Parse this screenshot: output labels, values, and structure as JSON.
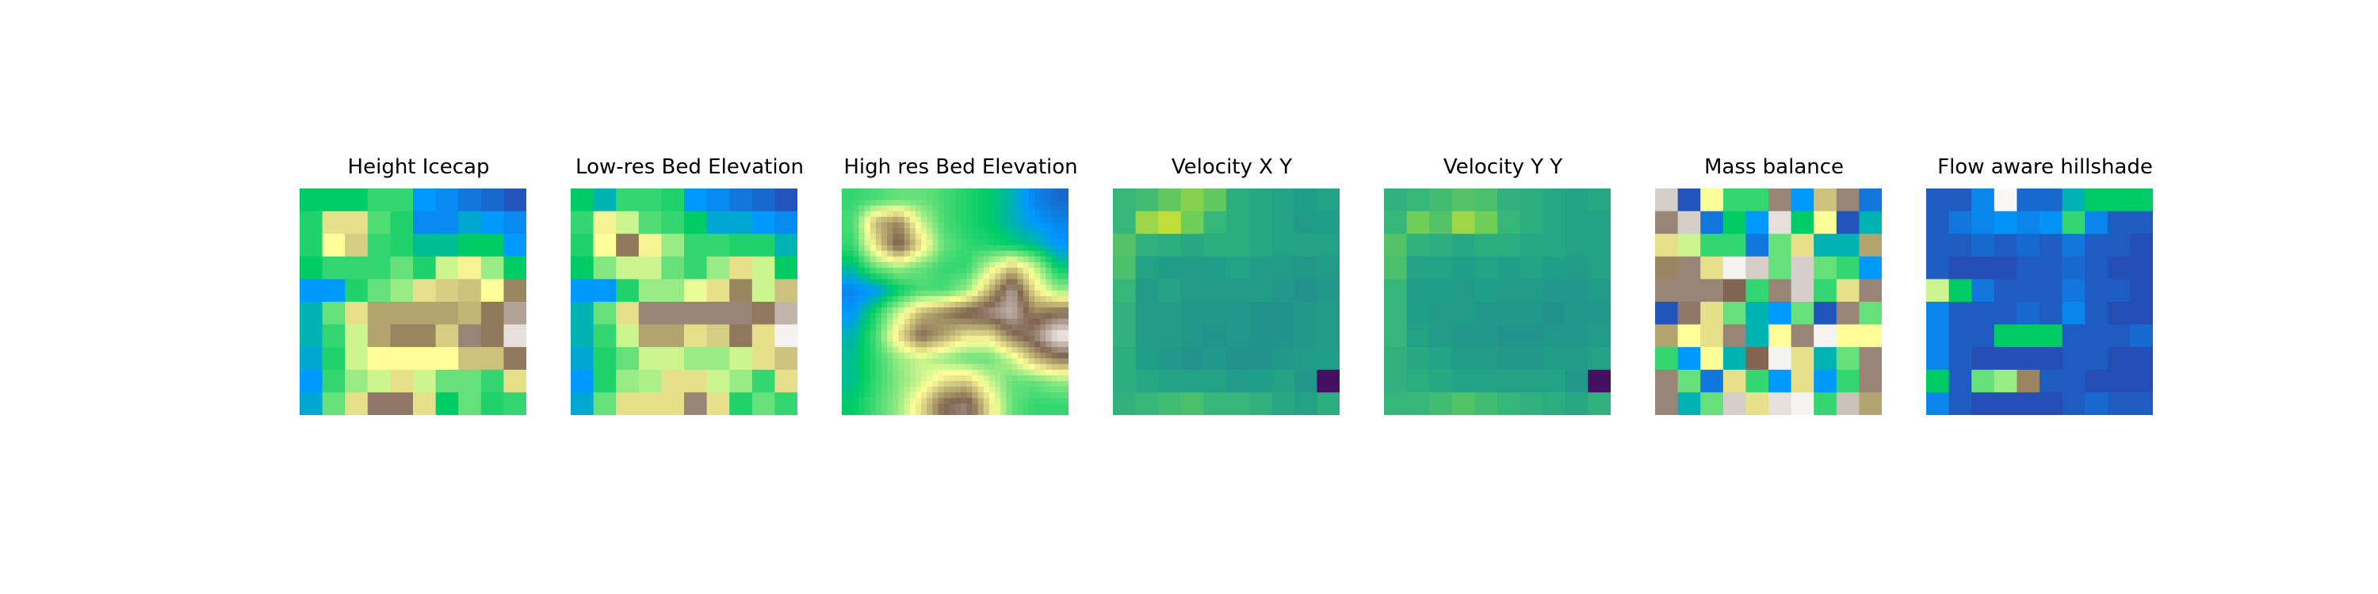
{
  "chart_data": [
    {
      "type": "heatmap",
      "title": "Height Icecap",
      "colormap": "terrain",
      "grid": false,
      "axes": "off",
      "z": [
        [
          0.25,
          0.25,
          0.25,
          0.3,
          0.3,
          0.15,
          0.13,
          0.1,
          0.08,
          0.05
        ],
        [
          0.28,
          0.55,
          0.55,
          0.33,
          0.28,
          0.13,
          0.13,
          0.18,
          0.15,
          0.13
        ],
        [
          0.28,
          0.5,
          0.58,
          0.3,
          0.28,
          0.22,
          0.22,
          0.25,
          0.25,
          0.15
        ],
        [
          0.25,
          0.3,
          0.3,
          0.3,
          0.35,
          0.28,
          0.45,
          0.52,
          0.4,
          0.25
        ],
        [
          0.15,
          0.15,
          0.28,
          0.35,
          0.4,
          0.55,
          0.58,
          0.6,
          0.5,
          0.7
        ],
        [
          0.2,
          0.35,
          0.55,
          0.65,
          0.65,
          0.65,
          0.65,
          0.62,
          0.72,
          0.85
        ],
        [
          0.2,
          0.3,
          0.45,
          0.65,
          0.7,
          0.7,
          0.58,
          0.8,
          0.72,
          0.95
        ],
        [
          0.18,
          0.28,
          0.45,
          0.5,
          0.5,
          0.5,
          0.5,
          0.6,
          0.6,
          0.72
        ],
        [
          0.15,
          0.3,
          0.4,
          0.45,
          0.55,
          0.45,
          0.35,
          0.35,
          0.3,
          0.55
        ],
        [
          0.18,
          0.35,
          0.55,
          0.78,
          0.78,
          0.55,
          0.25,
          0.35,
          0.28,
          0.3
        ]
      ]
    },
    {
      "type": "heatmap",
      "title": "Low-res Bed Elevation",
      "colormap": "terrain",
      "grid": false,
      "axes": "off",
      "z": [
        [
          0.25,
          0.2,
          0.3,
          0.3,
          0.28,
          0.15,
          0.13,
          0.1,
          0.08,
          0.05
        ],
        [
          0.3,
          0.52,
          0.45,
          0.33,
          0.3,
          0.25,
          0.18,
          0.18,
          0.15,
          0.13
        ],
        [
          0.28,
          0.5,
          0.72,
          0.52,
          0.4,
          0.3,
          0.3,
          0.28,
          0.28,
          0.2
        ],
        [
          0.25,
          0.38,
          0.45,
          0.45,
          0.35,
          0.3,
          0.4,
          0.55,
          0.45,
          0.25
        ],
        [
          0.15,
          0.15,
          0.28,
          0.4,
          0.4,
          0.48,
          0.55,
          0.7,
          0.45,
          0.6
        ],
        [
          0.2,
          0.35,
          0.55,
          0.8,
          0.8,
          0.8,
          0.8,
          0.8,
          0.72,
          0.88
        ],
        [
          0.2,
          0.3,
          0.45,
          0.65,
          0.65,
          0.55,
          0.58,
          0.72,
          0.55,
          0.98
        ],
        [
          0.18,
          0.28,
          0.35,
          0.45,
          0.45,
          0.4,
          0.4,
          0.45,
          0.55,
          0.6
        ],
        [
          0.15,
          0.28,
          0.4,
          0.42,
          0.55,
          0.55,
          0.45,
          0.4,
          0.3,
          0.55
        ],
        [
          0.18,
          0.35,
          0.55,
          0.55,
          0.55,
          0.8,
          0.55,
          0.28,
          0.35,
          0.3
        ]
      ]
    },
    {
      "type": "heatmap",
      "title": "High res Bed Elevation",
      "colormap": "terrain",
      "grid": false,
      "axes": "off",
      "smooth": true,
      "z": [
        [
          0.3,
          0.32,
          0.35,
          0.35,
          0.32,
          0.28,
          0.25,
          0.2,
          0.12,
          0.08
        ],
        [
          0.32,
          0.62,
          0.7,
          0.45,
          0.32,
          0.28,
          0.25,
          0.2,
          0.15,
          0.12
        ],
        [
          0.3,
          0.55,
          0.78,
          0.55,
          0.35,
          0.3,
          0.28,
          0.25,
          0.22,
          0.15
        ],
        [
          0.22,
          0.35,
          0.4,
          0.35,
          0.3,
          0.3,
          0.45,
          0.6,
          0.45,
          0.25
        ],
        [
          0.12,
          0.15,
          0.25,
          0.32,
          0.32,
          0.4,
          0.62,
          0.85,
          0.55,
          0.4
        ],
        [
          0.15,
          0.28,
          0.45,
          0.62,
          0.7,
          0.78,
          0.82,
          0.88,
          0.7,
          0.75
        ],
        [
          0.2,
          0.32,
          0.55,
          0.75,
          0.65,
          0.55,
          0.55,
          0.72,
          0.8,
          0.98
        ],
        [
          0.22,
          0.3,
          0.4,
          0.45,
          0.4,
          0.35,
          0.35,
          0.45,
          0.62,
          0.72
        ],
        [
          0.22,
          0.3,
          0.38,
          0.45,
          0.55,
          0.58,
          0.45,
          0.35,
          0.35,
          0.4
        ],
        [
          0.25,
          0.32,
          0.4,
          0.55,
          0.75,
          0.8,
          0.55,
          0.35,
          0.3,
          0.3
        ]
      ]
    },
    {
      "type": "heatmap",
      "title": "Velocity X Y",
      "colormap": "viridis",
      "grid": false,
      "axes": "off",
      "z": [
        [
          0.75,
          0.78,
          0.85,
          0.9,
          0.85,
          0.7,
          0.68,
          0.65,
          0.63,
          0.65
        ],
        [
          0.75,
          0.92,
          0.95,
          0.88,
          0.75,
          0.7,
          0.68,
          0.65,
          0.62,
          0.63
        ],
        [
          0.82,
          0.72,
          0.7,
          0.68,
          0.7,
          0.7,
          0.68,
          0.65,
          0.65,
          0.65
        ],
        [
          0.8,
          0.65,
          0.62,
          0.62,
          0.63,
          0.65,
          0.62,
          0.62,
          0.6,
          0.62
        ],
        [
          0.75,
          0.62,
          0.65,
          0.62,
          0.62,
          0.62,
          0.62,
          0.6,
          0.58,
          0.6
        ],
        [
          0.72,
          0.62,
          0.62,
          0.6,
          0.6,
          0.6,
          0.58,
          0.58,
          0.6,
          0.62
        ],
        [
          0.72,
          0.62,
          0.62,
          0.6,
          0.58,
          0.6,
          0.58,
          0.58,
          0.6,
          0.62
        ],
        [
          0.7,
          0.63,
          0.6,
          0.58,
          0.6,
          0.58,
          0.58,
          0.6,
          0.62,
          0.63
        ],
        [
          0.7,
          0.68,
          0.65,
          0.65,
          0.65,
          0.62,
          0.63,
          0.65,
          0.6,
          0.05
        ],
        [
          0.72,
          0.75,
          0.78,
          0.8,
          0.75,
          0.75,
          0.72,
          0.68,
          0.65,
          0.7
        ]
      ]
    },
    {
      "type": "heatmap",
      "title": "Velocity Y Y",
      "colormap": "viridis",
      "grid": false,
      "axes": "off",
      "z": [
        [
          0.72,
          0.75,
          0.78,
          0.82,
          0.8,
          0.72,
          0.7,
          0.68,
          0.65,
          0.68
        ],
        [
          0.75,
          0.88,
          0.82,
          0.92,
          0.88,
          0.75,
          0.7,
          0.68,
          0.65,
          0.65
        ],
        [
          0.82,
          0.72,
          0.7,
          0.68,
          0.7,
          0.7,
          0.68,
          0.68,
          0.65,
          0.65
        ],
        [
          0.8,
          0.65,
          0.65,
          0.63,
          0.65,
          0.63,
          0.65,
          0.63,
          0.62,
          0.65
        ],
        [
          0.75,
          0.63,
          0.63,
          0.62,
          0.63,
          0.62,
          0.62,
          0.6,
          0.6,
          0.62
        ],
        [
          0.75,
          0.63,
          0.62,
          0.62,
          0.6,
          0.6,
          0.6,
          0.58,
          0.6,
          0.6
        ],
        [
          0.75,
          0.65,
          0.62,
          0.6,
          0.6,
          0.58,
          0.58,
          0.6,
          0.6,
          0.62
        ],
        [
          0.72,
          0.68,
          0.65,
          0.62,
          0.62,
          0.6,
          0.6,
          0.62,
          0.62,
          0.65
        ],
        [
          0.72,
          0.7,
          0.68,
          0.65,
          0.65,
          0.65,
          0.65,
          0.65,
          0.6,
          0.05
        ],
        [
          0.75,
          0.75,
          0.78,
          0.82,
          0.78,
          0.75,
          0.72,
          0.7,
          0.68,
          0.72
        ]
      ]
    },
    {
      "type": "heatmap",
      "title": "Mass balance",
      "colormap": "terrain",
      "grid": false,
      "axes": "off",
      "z": [
        [
          0.92,
          0.05,
          0.5,
          0.3,
          0.3,
          0.8,
          0.15,
          0.6,
          0.8,
          0.1
        ],
        [
          0.8,
          0.92,
          0.1,
          0.25,
          0.15,
          0.95,
          0.25,
          0.5,
          0.05,
          0.2
        ],
        [
          0.55,
          0.45,
          0.3,
          0.3,
          0.1,
          0.35,
          0.55,
          0.2,
          0.2,
          0.65
        ],
        [
          0.7,
          0.8,
          0.55,
          0.98,
          0.92,
          0.35,
          0.92,
          0.35,
          0.3,
          0.15
        ],
        [
          0.8,
          0.8,
          0.8,
          0.75,
          0.3,
          0.8,
          0.92,
          0.3,
          0.55,
          0.8
        ],
        [
          0.05,
          0.78,
          0.55,
          0.35,
          0.2,
          0.15,
          0.35,
          0.05,
          0.8,
          0.35
        ],
        [
          0.65,
          0.5,
          0.55,
          0.8,
          0.2,
          0.5,
          0.8,
          0.98,
          0.5,
          0.5
        ],
        [
          0.3,
          0.15,
          0.5,
          0.2,
          0.75,
          0.98,
          0.55,
          0.2,
          0.35,
          0.8
        ],
        [
          0.8,
          0.35,
          0.1,
          0.55,
          0.3,
          0.15,
          0.55,
          0.15,
          0.3,
          0.8
        ],
        [
          0.8,
          0.2,
          0.35,
          0.92,
          0.55,
          0.95,
          0.98,
          0.3,
          0.9,
          0.65
        ]
      ]
    },
    {
      "type": "heatmap",
      "title": "Flow aware hillshade",
      "colormap": "terrain",
      "grid": false,
      "axes": "off",
      "z": [
        [
          0.06,
          0.06,
          0.12,
          0.99,
          0.08,
          0.08,
          0.2,
          0.25,
          0.25,
          0.25
        ],
        [
          0.06,
          0.1,
          0.12,
          0.14,
          0.12,
          0.14,
          0.3,
          0.12,
          0.06,
          0.06
        ],
        [
          0.06,
          0.06,
          0.08,
          0.06,
          0.08,
          0.06,
          0.1,
          0.06,
          0.06,
          0.04
        ],
        [
          0.06,
          0.04,
          0.04,
          0.04,
          0.06,
          0.06,
          0.08,
          0.06,
          0.04,
          0.04
        ],
        [
          0.45,
          0.25,
          0.1,
          0.06,
          0.06,
          0.06,
          0.1,
          0.06,
          0.06,
          0.04
        ],
        [
          0.12,
          0.06,
          0.06,
          0.06,
          0.08,
          0.06,
          0.12,
          0.06,
          0.04,
          0.04
        ],
        [
          0.12,
          0.06,
          0.06,
          0.25,
          0.25,
          0.25,
          0.06,
          0.06,
          0.06,
          0.08
        ],
        [
          0.12,
          0.06,
          0.04,
          0.04,
          0.04,
          0.04,
          0.06,
          0.06,
          0.04,
          0.04
        ],
        [
          0.25,
          0.06,
          0.35,
          0.4,
          0.7,
          0.06,
          0.06,
          0.04,
          0.04,
          0.04
        ],
        [
          0.12,
          0.06,
          0.04,
          0.04,
          0.04,
          0.04,
          0.06,
          0.08,
          0.06,
          0.06
        ]
      ]
    }
  ]
}
